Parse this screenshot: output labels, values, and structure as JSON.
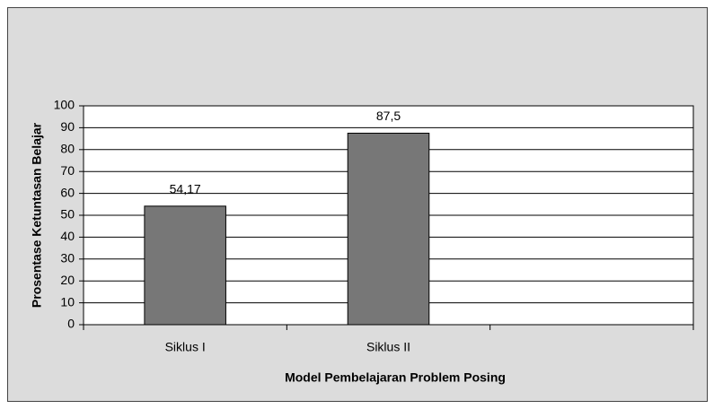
{
  "chart_data": {
    "type": "bar",
    "x_label": "Model Pembelajaran Problem Posing",
    "y_label": "Prosentase Ketuntasan Belajar",
    "categories": [
      "Siklus I",
      "Siklus II",
      null
    ],
    "values": [
      54.17,
      87.5,
      null
    ],
    "value_labels": [
      "54,17",
      "87,5",
      null
    ],
    "color": "#777777",
    "ylim": [
      0,
      100
    ],
    "yticks": [
      0,
      10,
      20,
      30,
      40,
      50,
      60,
      70,
      80,
      90,
      100
    ],
    "grid": true
  }
}
